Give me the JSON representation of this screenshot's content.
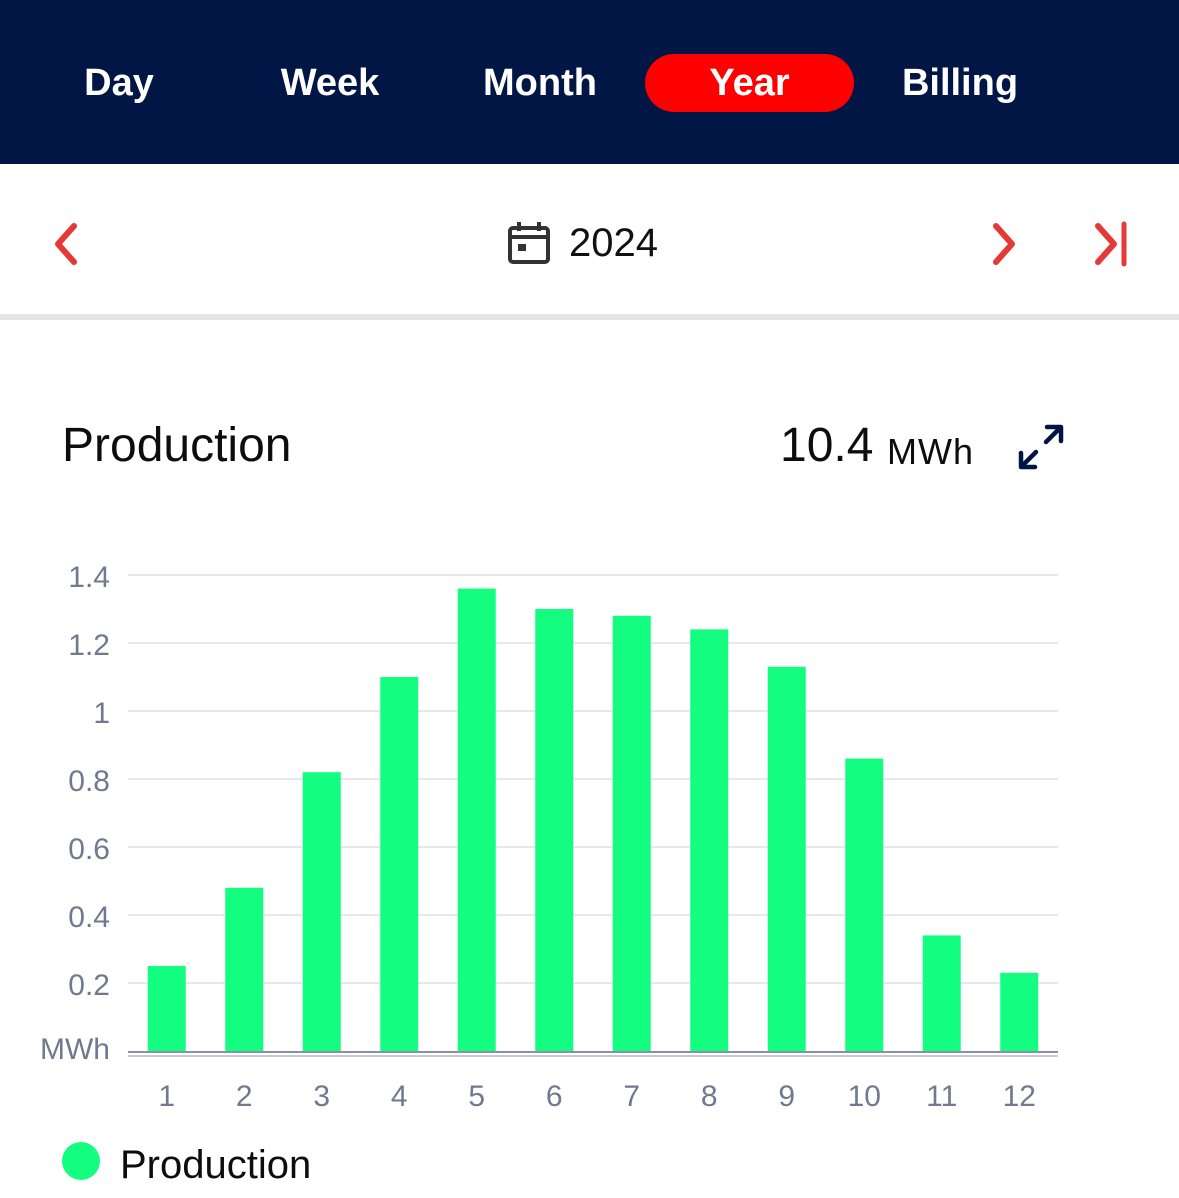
{
  "tabs": {
    "day": "Day",
    "week": "Week",
    "month": "Month",
    "year": "Year",
    "billing": "Billing",
    "active": "year"
  },
  "date_nav": {
    "year": "2024",
    "prev_icon": "chevron-left-icon",
    "next_icon": "chevron-right-icon",
    "last_icon": "skip-to-end-icon",
    "calendar_icon": "calendar-icon"
  },
  "production": {
    "title": "Production",
    "total_value": "10.4",
    "total_unit": "MWh",
    "expand_icon": "expand-icon"
  },
  "legend": {
    "label": "Production",
    "color": "#13fe81"
  },
  "colors": {
    "header_bg": "#021646",
    "active_tab": "#ff0000",
    "accent_red": "#e53935",
    "bar": "#13fe81"
  },
  "chart_data": {
    "type": "bar",
    "categories": [
      "1",
      "2",
      "3",
      "4",
      "5",
      "6",
      "7",
      "8",
      "9",
      "10",
      "11",
      "12"
    ],
    "series": [
      {
        "name": "Production",
        "values": [
          0.25,
          0.48,
          0.82,
          1.1,
          1.36,
          1.3,
          1.28,
          1.24,
          1.13,
          0.86,
          0.34,
          0.23
        ]
      }
    ],
    "ylabel": "MWh",
    "yticks": [
      "0.2",
      "0.4",
      "0.6",
      "0.8",
      "1",
      "1.2",
      "1.4"
    ],
    "ylim": [
      0,
      1.4
    ],
    "grid": true,
    "legend": "bottom-left"
  }
}
